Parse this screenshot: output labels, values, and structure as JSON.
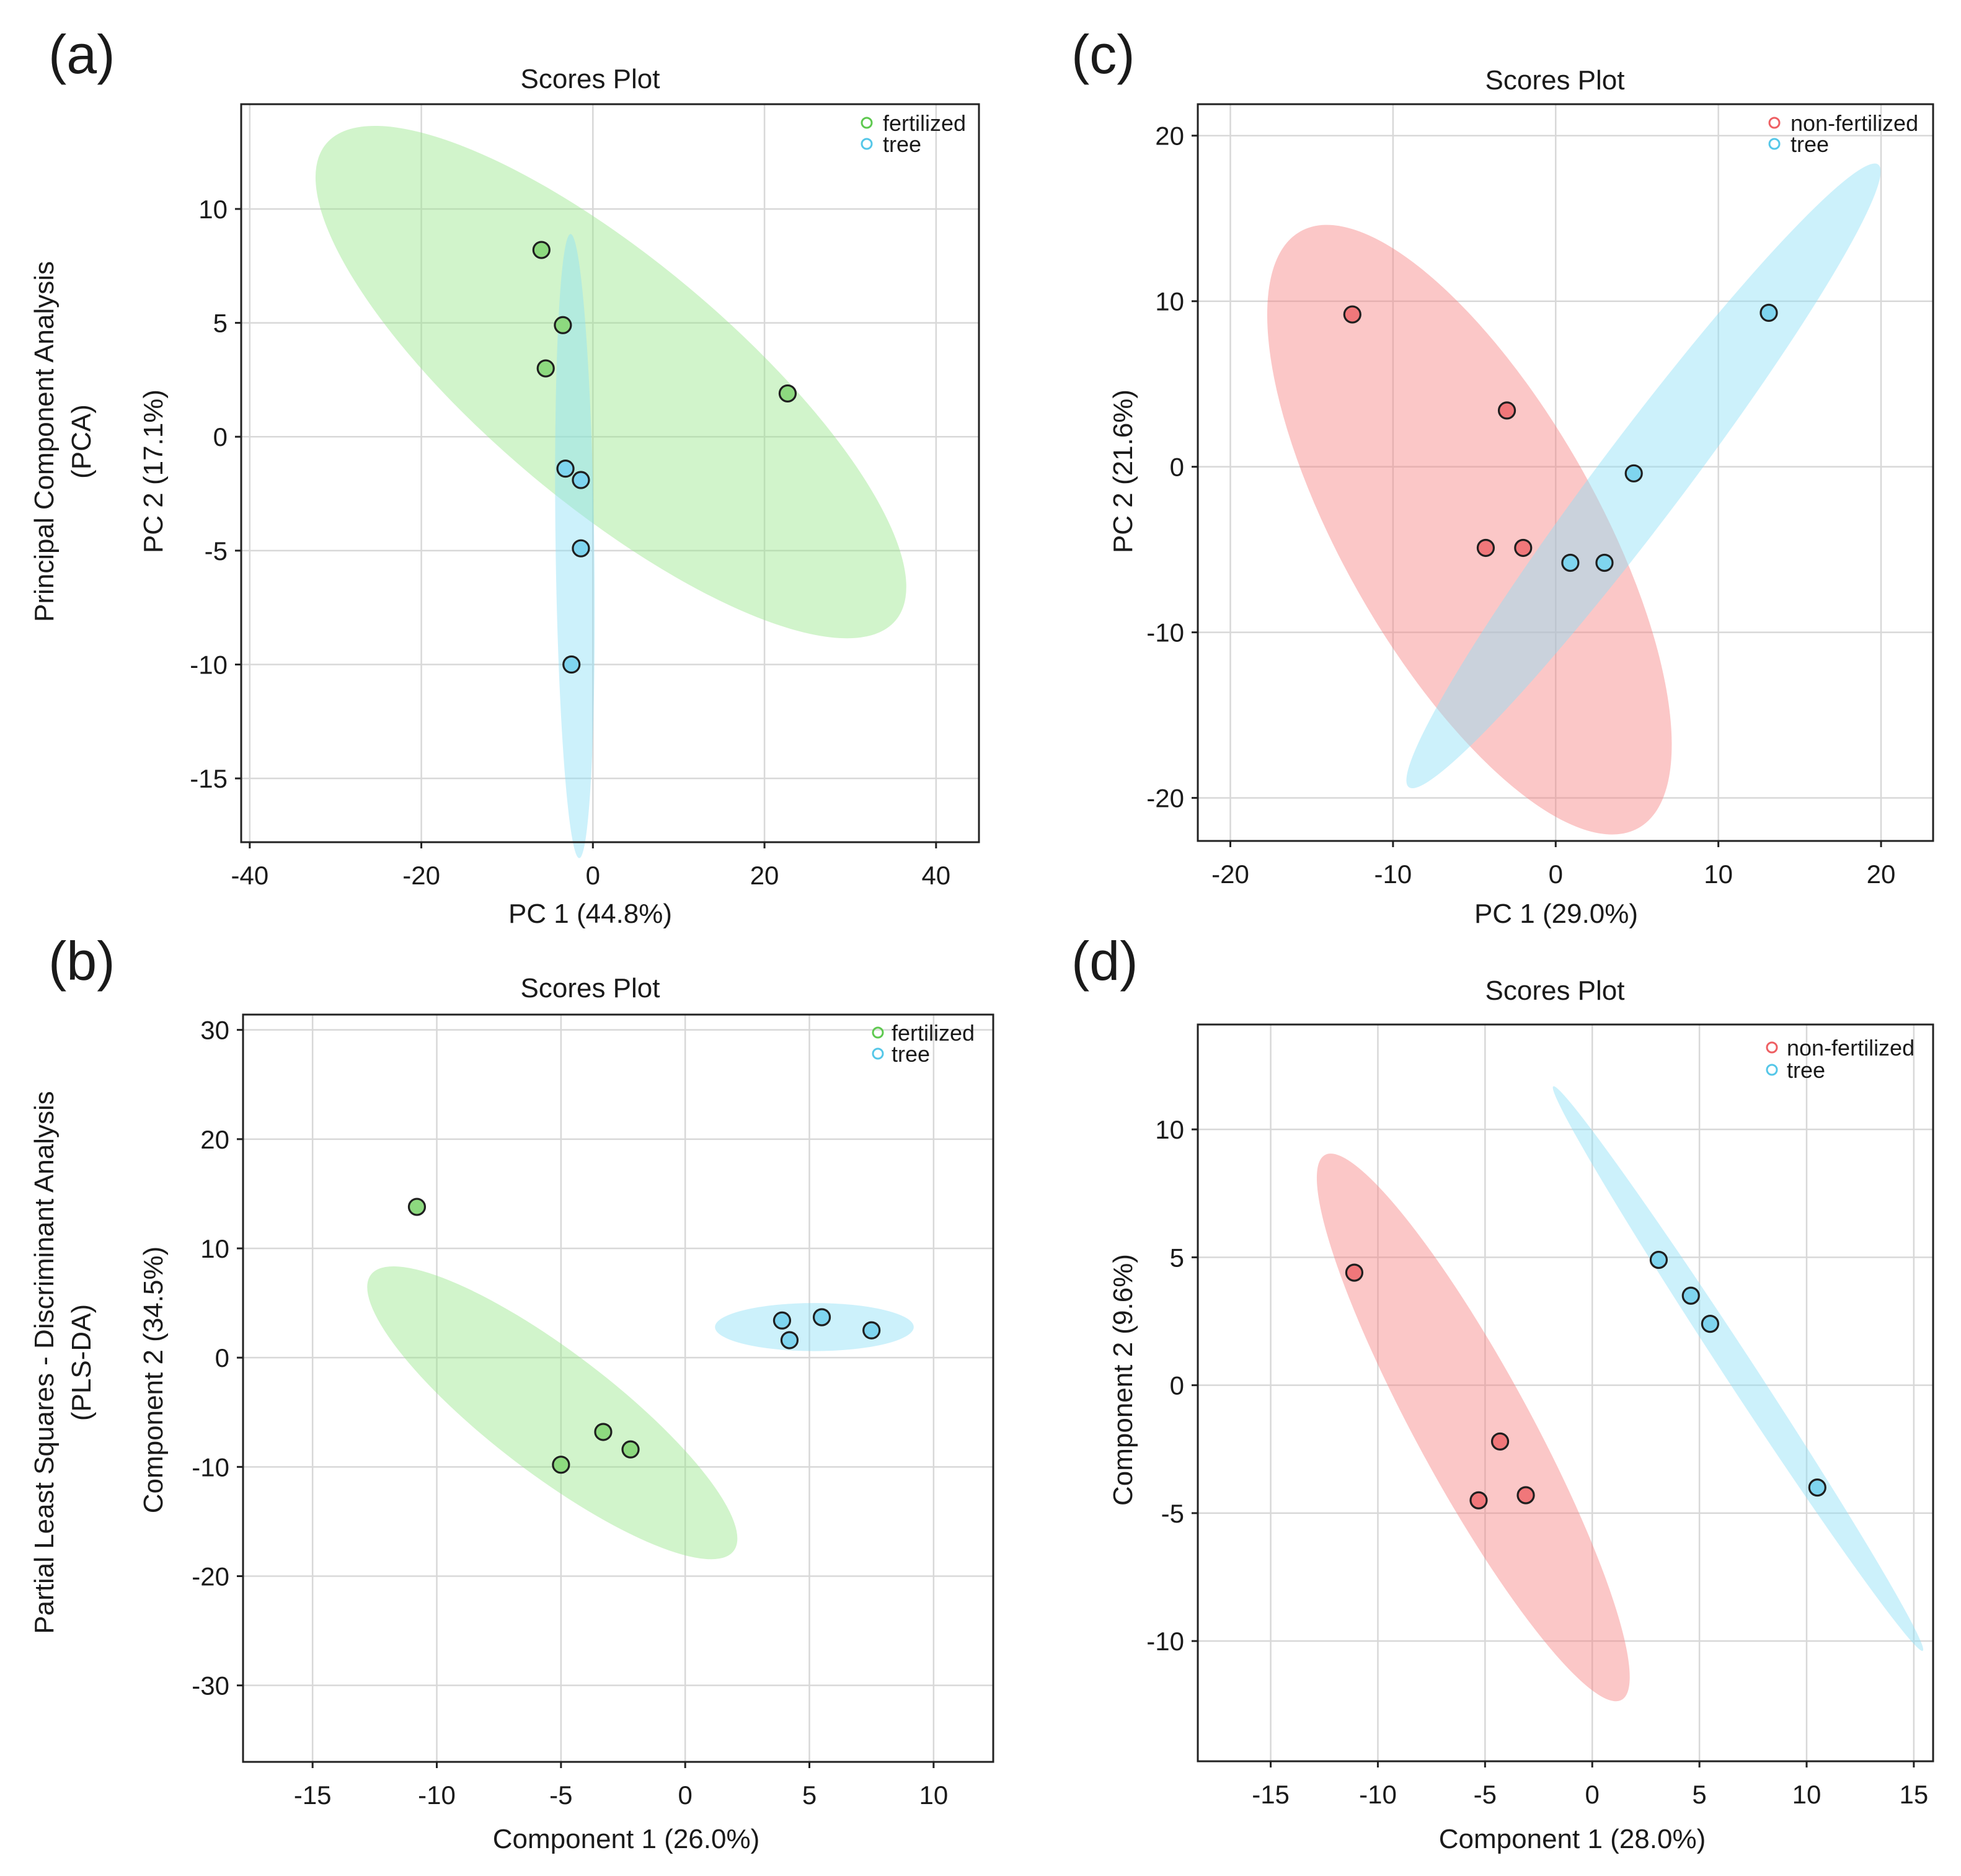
{
  "row_labels": {
    "top": [
      "Principal Component Analysis",
      "(PCA)"
    ],
    "bottom": [
      "Partial Least Squares - Discriminant Analysis",
      "(PLS-DA)"
    ]
  },
  "colors": {
    "fertilized_fill": "#99e68c",
    "fertilized_point": "#8dd97f",
    "non_fertilized_fill": "#f78383",
    "non_fertilized_point": "#f0777a",
    "tree_fill": "#8ee0f7",
    "tree_point": "#7fd5ef"
  },
  "chart_data": [
    {
      "id": "a",
      "panel_label": "(a)",
      "type": "scatter",
      "title": "Scores Plot",
      "xlabel": "PC 1 (44.8%)",
      "ylabel": "PC 2 (17.1%)",
      "xlim": [
        -41,
        45
      ],
      "ylim": [
        -17.8,
        14.6
      ],
      "xticks": [
        -40,
        -20,
        0,
        20,
        40
      ],
      "yticks": [
        10,
        5,
        0,
        -5,
        -10,
        -15
      ],
      "grid": true,
      "legend_position": "top-right",
      "legend": [
        "fertilized",
        "tree"
      ],
      "series": [
        {
          "name": "fertilized",
          "color_key": "fertilized",
          "points": [
            [
              -6,
              8.2
            ],
            [
              -3.5,
              4.9
            ],
            [
              -5.5,
              3
            ],
            [
              22.7,
              1.9
            ]
          ],
          "ellipse": {
            "cx": 2.1,
            "cy": 2.4,
            "rx": 34.8,
            "ry": 5.6,
            "angle": -17.5
          }
        },
        {
          "name": "tree",
          "color_key": "tree",
          "points": [
            [
              -3.2,
              -1.4
            ],
            [
              -1.4,
              -1.9
            ],
            [
              -1.4,
              -4.9
            ],
            [
              -2.5,
              -10
            ]
          ],
          "ellipse": {
            "cx": -2.1,
            "cy": -4.8,
            "rx": 2.25,
            "ry": 13.7,
            "angle": 0.3
          }
        }
      ]
    },
    {
      "id": "c",
      "panel_label": "(c)",
      "type": "scatter",
      "title": "Scores Plot",
      "xlabel": "PC 1 (29.0%)",
      "ylabel": "PC 2 (21.6%)",
      "xlim": [
        -22,
        23.2
      ],
      "ylim": [
        -22.6,
        21.9
      ],
      "xticks": [
        -20,
        -10,
        0,
        10,
        20
      ],
      "yticks": [
        20,
        10,
        0,
        -10,
        -20
      ],
      "grid": true,
      "legend_position": "top-right",
      "legend": [
        "non-fertilized",
        "tree"
      ],
      "series": [
        {
          "name": "non-fertilized",
          "color_key": "non_fertilized",
          "points": [
            [
              -12.5,
              9.2
            ],
            [
              -3,
              3.4
            ],
            [
              -4.3,
              -4.9
            ],
            [
              -2,
              -4.9
            ]
          ],
          "ellipse": {
            "cx": -5.3,
            "cy": -3.8,
            "rx": 20.8,
            "ry": 7.8,
            "angle": -60
          }
        },
        {
          "name": "tree",
          "color_key": "tree",
          "points": [
            [
              13.1,
              9.3
            ],
            [
              4.8,
              -0.4
            ],
            [
              0.9,
              -5.8
            ],
            [
              3,
              -5.8
            ]
          ],
          "ellipse": {
            "cx": 5.4,
            "cy": -0.55,
            "rx": 23.7,
            "ry": 2.6,
            "angle": 52.5
          }
        }
      ]
    },
    {
      "id": "b",
      "panel_label": "(b)",
      "type": "scatter",
      "title": "Scores Plot",
      "xlabel": "Component 1 (26.0%)",
      "ylabel": "Component 2 (34.5%)",
      "xlim": [
        -17.8,
        12.4
      ],
      "ylim": [
        -37,
        31.4
      ],
      "xticks": [
        -15,
        -10,
        -5,
        0,
        5,
        10
      ],
      "yticks": [
        30,
        20,
        10,
        0,
        -10,
        -20,
        -30
      ],
      "grid": true,
      "legend_position": "top-right",
      "legend": [
        "fertilized",
        "tree"
      ],
      "series": [
        {
          "name": "fertilized",
          "color_key": "fertilized",
          "points": [
            [
              -10.8,
              13.8
            ],
            [
              -3.3,
              -6.8
            ],
            [
              -2.2,
              -8.4
            ],
            [
              -5,
              -9.8
            ]
          ],
          "ellipse": {
            "cx": -5.35,
            "cy": -5.05,
            "rx": 14.6,
            "ry": 2.75,
            "angle": -60
          }
        },
        {
          "name": "tree",
          "color_key": "tree",
          "points": [
            [
              3.9,
              3.4
            ],
            [
              5.5,
              3.7
            ],
            [
              7.5,
              2.5
            ],
            [
              4.2,
              1.6
            ]
          ],
          "ellipse": {
            "cx": 5.2,
            "cy": 2.8,
            "rx": 4,
            "ry": 2.2,
            "angle": 0
          }
        }
      ]
    },
    {
      "id": "d",
      "panel_label": "(d)",
      "type": "scatter",
      "title": "Scores Plot",
      "xlabel": "Component 1 (28.0%)",
      "ylabel": "Component 2 (9.6%)",
      "xlim": [
        -18.4,
        15.9
      ],
      "ylim": [
        -14.7,
        14.1
      ],
      "xticks": [
        -15,
        -10,
        -5,
        0,
        5,
        10,
        15
      ],
      "yticks": [
        10,
        5,
        0,
        -5,
        -10
      ],
      "grid": true,
      "legend_position": "top-right",
      "legend": [
        "non-fertilized",
        "tree"
      ],
      "series": [
        {
          "name": "non-fertilized",
          "color_key": "non_fertilized",
          "points": [
            [
              -11.1,
              4.4
            ],
            [
              -4.3,
              -2.2
            ],
            [
              -3.1,
              -4.3
            ],
            [
              -5.3,
              -4.5
            ]
          ],
          "ellipse": {
            "cx": -5.55,
            "cy": -1.65,
            "rx": 12.7,
            "ry": 2.5,
            "angle": -57
          }
        },
        {
          "name": "tree",
          "color_key": "tree",
          "points": [
            [
              3.1,
              4.9
            ],
            [
              4.6,
              3.5
            ],
            [
              5.5,
              2.4
            ],
            [
              10.5,
              -4
            ]
          ],
          "ellipse": {
            "cx": 6.8,
            "cy": 0.65,
            "rx": 14,
            "ry": 0.65,
            "angle": -52
          }
        }
      ]
    }
  ]
}
